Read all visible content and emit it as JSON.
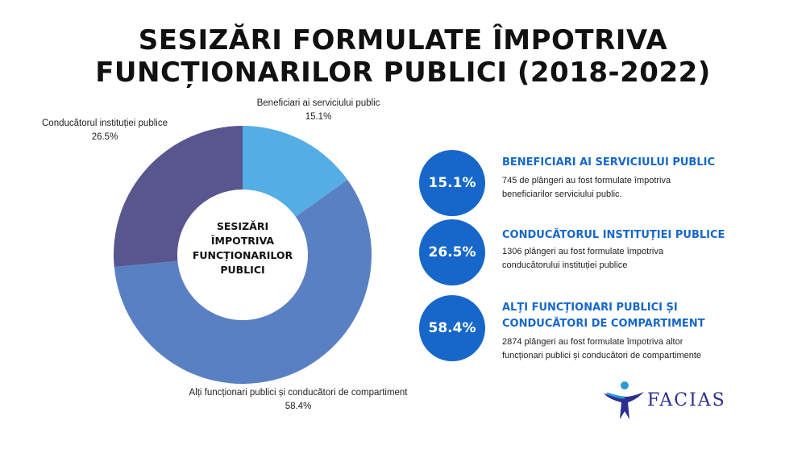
{
  "title": {
    "line1": "SESIZĂRI FORMULATE ÎMPOTRIVA",
    "line2": "FUNCȚIONARILOR PUBLICI (2018-2022)"
  },
  "center_label": [
    "SESIZĂRI",
    "ÎMPOTRIVA",
    "FUNCȚIONARILOR",
    "PUBLICI"
  ],
  "chart_data": {
    "type": "pie",
    "title": "SESIZĂRI FORMULATE ÎMPOTRIVA FUNCȚIONARILOR PUBLICI (2018-2022)",
    "donut": true,
    "categories": [
      "Beneficiari ai serviciului public",
      "Alți funcționari publici și conducători de compartiment",
      "Conducătorul instituției publice"
    ],
    "values": [
      15.1,
      58.4,
      26.5
    ],
    "value_labels": [
      "15.1%",
      "58.4%",
      "26.5%"
    ],
    "colors": [
      "#55ade6",
      "#5a80c4",
      "#58558f"
    ]
  },
  "info": [
    {
      "percent": "15.1%",
      "heading": [
        "BENEFICIARI AI SERVICIULUI PUBLIC"
      ],
      "desc": [
        "745 de plângeri au fost formulate împotriva",
        "beneficiarilor serviciului public."
      ]
    },
    {
      "percent": "26.5%",
      "heading": [
        "CONDUCĂTORUL INSTITUȚIEI PUBLICE"
      ],
      "desc": [
        "1306 plângeri au fost formulate împotriva",
        "conducătorului instituției publice"
      ]
    },
    {
      "percent": "58.4%",
      "heading": [
        "ALȚI FUNCȚIONARI PUBLICI ȘI",
        "CONDUCĂTORI DE COMPARTIMENT"
      ],
      "desc": [
        "2874 plângeri au fost formulate împotriva altor",
        "funcționari publici și conducători de compartimente"
      ]
    }
  ],
  "logo": {
    "text": "FACIAS",
    "accent_color": "#2a9bd6",
    "text_color": "#2a2f8f"
  },
  "accent_color": "#1667c9"
}
